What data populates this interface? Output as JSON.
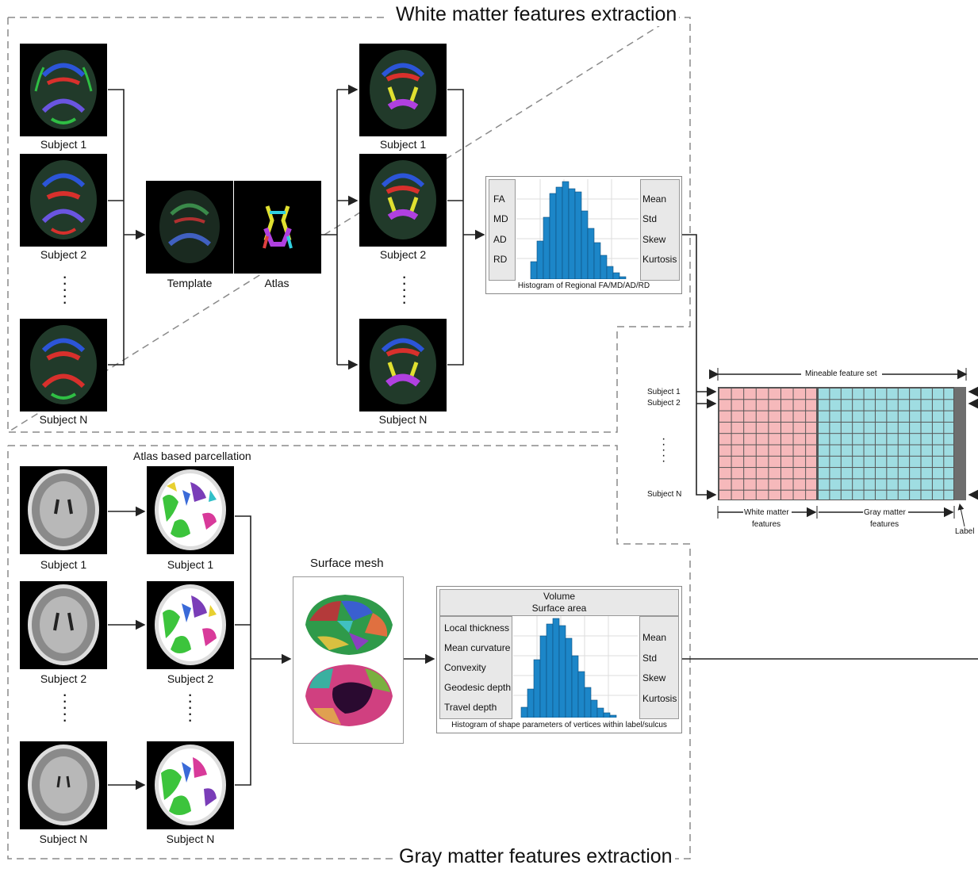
{
  "white_matter": {
    "title": "White matter features extraction",
    "subjects_left": [
      "Subject 1",
      "Subject 2",
      "Subject N"
    ],
    "template_label": "Template",
    "atlas_label": "Atlas",
    "subjects_right": [
      "Subject 1",
      "Subject 2",
      "Subject N"
    ],
    "histogram": {
      "left_labels": [
        "FA",
        "MD",
        "AD",
        "RD"
      ],
      "right_labels": [
        "Mean",
        "Std",
        "Skew",
        "Kurtosis"
      ],
      "caption": "Histogram of Regional FA/MD/AD/RD"
    }
  },
  "gray_matter": {
    "title": "Gray matter features extraction",
    "parcellation_label": "Atlas based parcellation",
    "subjects_left": [
      "Subject 1",
      "Subject 2",
      "Subject N"
    ],
    "subjects_right": [
      "Subject 1",
      "Subject 2",
      "Subject N"
    ],
    "surface_mesh_label": "Surface mesh",
    "histogram": {
      "top_labels": [
        "Volume",
        "Surface area"
      ],
      "left_labels": [
        "Local thickness",
        "Mean curvature",
        "Convexity",
        "Geodesic depth",
        "Travel depth"
      ],
      "right_labels": [
        "Mean",
        "Std",
        "Skew",
        "Kurtosis"
      ],
      "caption": "Histogram of shape parameters of vertices within label/sulcus"
    }
  },
  "feature_set": {
    "title": "Mineable feature set",
    "rows": [
      "Subject 1",
      "Subject 2",
      "Subject N"
    ],
    "wm_label": [
      "White matter",
      "features"
    ],
    "gm_label": [
      "Gray matter",
      "features"
    ],
    "label_col": "Label",
    "colors": {
      "wm": "#f6b9bb",
      "gm": "#9fdde2",
      "label": "#6e6e6e"
    }
  },
  "colors": {
    "histogram_bar": "#1c86c8",
    "dash": "#8a8a8a"
  }
}
